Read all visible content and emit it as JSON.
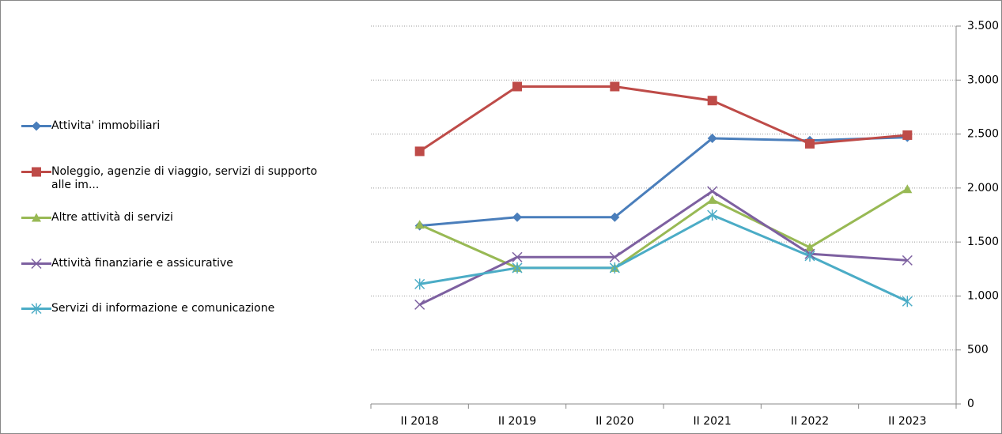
{
  "chart_data": {
    "type": "line",
    "categories": [
      "II 2018",
      "II 2019",
      "II 2020",
      "II 2021",
      "II 2022",
      "II 2023"
    ],
    "series": [
      {
        "name": "Attivita' immobiliari",
        "color": "#4a7ebb",
        "marker": "diamond",
        "values": [
          1650,
          1730,
          1730,
          2460,
          2440,
          2470
        ]
      },
      {
        "name": "Noleggio, agenzie di viaggio, servizi di supporto alle im...",
        "color": "#be4b48",
        "marker": "square",
        "values": [
          2340,
          2940,
          2940,
          2810,
          2410,
          2490
        ]
      },
      {
        "name": "Altre attività di servizi",
        "color": "#98b954",
        "marker": "triangle",
        "values": [
          1660,
          1260,
          1260,
          1890,
          1450,
          1990
        ]
      },
      {
        "name": "Attività finanziarie e assicurative",
        "color": "#7d60a0",
        "marker": "x",
        "values": [
          920,
          1360,
          1360,
          1970,
          1390,
          1330
        ]
      },
      {
        "name": "Servizi di informazione e comunicazione",
        "color": "#4bacc6",
        "marker": "asterisk",
        "values": [
          1110,
          1260,
          1260,
          1750,
          1370,
          950
        ]
      }
    ],
    "ylim": [
      0,
      3500
    ],
    "yticks": [
      0,
      {
        "value": 500,
        "label": "500"
      },
      {
        "value": 1000,
        "label": "1.000"
      },
      {
        "value": 1500,
        "label": "1.500"
      },
      {
        "value": 2000,
        "label": "2.000"
      },
      {
        "value": 2500,
        "label": "2.500"
      },
      {
        "value": 3000,
        "label": "3.000"
      },
      {
        "value": 3500,
        "label": "3.500"
      }
    ],
    "y_axis_side": "right",
    "grid": true,
    "legend": "left"
  }
}
